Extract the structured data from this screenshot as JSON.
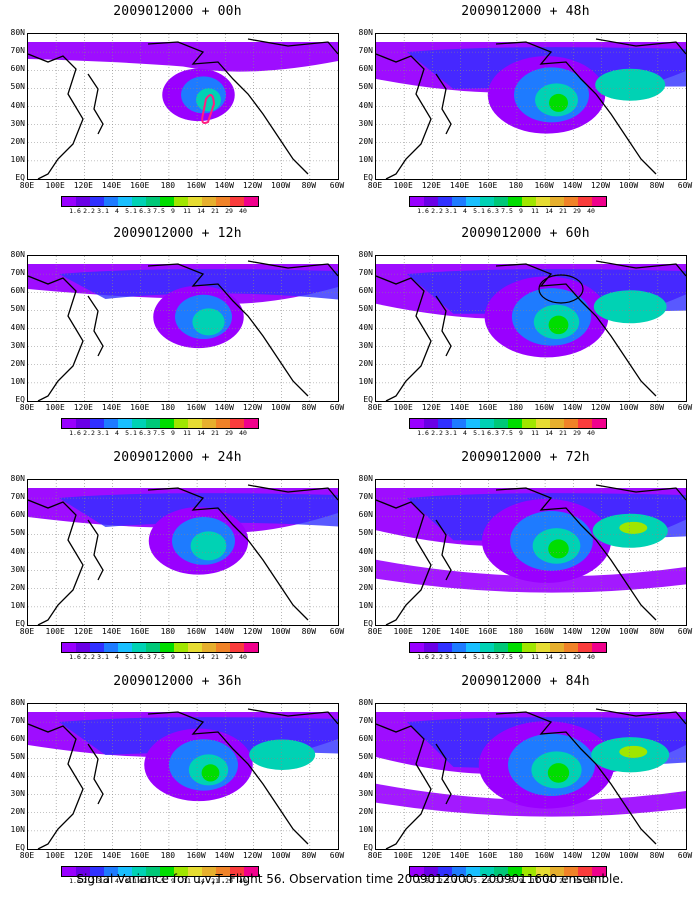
{
  "panels": [
    {
      "title": "2009012000",
      "sep": " + ",
      "lead": "00h",
      "level": 0.25
    },
    {
      "title": "2009012000",
      "sep": " + ",
      "lead": "48h",
      "level": 0.75
    },
    {
      "title": "2009012000",
      "sep": " + ",
      "lead": "12h",
      "level": 0.45
    },
    {
      "title": "2009012000",
      "sep": " + ",
      "lead": "60h",
      "level": 0.82
    },
    {
      "title": "2009012000",
      "sep": " + ",
      "lead": "24h",
      "level": 0.55
    },
    {
      "title": "2009012000",
      "sep": " + ",
      "lead": "72h",
      "level": 0.88
    },
    {
      "title": "2009012000",
      "sep": " + ",
      "lead": "36h",
      "level": 0.65
    },
    {
      "title": "2009012000",
      "sep": " + ",
      "lead": "84h",
      "level": 0.95
    }
  ],
  "lat_labels": [
    "80N",
    "70N",
    "60N",
    "50N",
    "40N",
    "30N",
    "20N",
    "10N",
    "EQ"
  ],
  "lon_labels": [
    "80E",
    "100E",
    "120E",
    "140E",
    "160E",
    "180",
    "160W",
    "140W",
    "120W",
    "100W",
    "80W",
    "60W"
  ],
  "colorbar": {
    "colors": [
      "#9900ff",
      "#6a00e6",
      "#3030ff",
      "#1e7bff",
      "#19bfff",
      "#00d2b4",
      "#00c878",
      "#00dd00",
      "#a0e600",
      "#e6dc32",
      "#e6af2d",
      "#f08228",
      "#fa3c3c",
      "#f0008c"
    ],
    "labels": [
      "1.6",
      "2.2",
      "3.1",
      "4",
      "5.1",
      "6.3",
      "7.5",
      "9",
      "11",
      "14",
      "21",
      "29",
      "40"
    ]
  },
  "footer": "Signal Variance for u,v,T. Flight 56. Observation time 2009012000. 2009011600 ensemble."
}
